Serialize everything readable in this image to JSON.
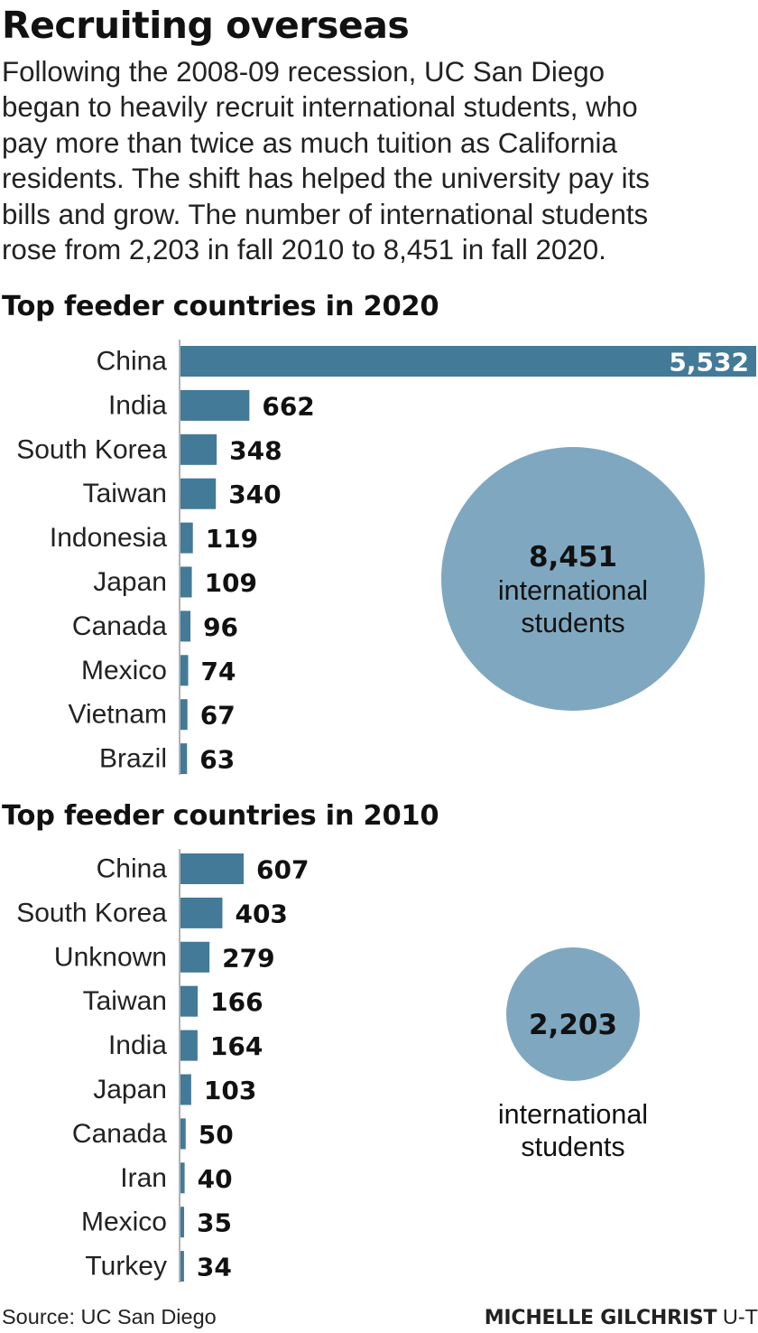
{
  "header": {
    "title": "Recruiting overseas",
    "intro": "Following the 2008-09 recession, UC San Diego\nbegan to heavily recruit international students, who\npay more than twice as much tuition as California\nresidents. The shift has helped the university pay its\nbills and grow. The number of international students\nrose from 2,203 in fall 2010 to 8,451 in fall 2020."
  },
  "colors": {
    "bar": "#437a98",
    "circle": "#7fa8c0",
    "axis": "#9a9a9a"
  },
  "chart_data": [
    {
      "type": "bar",
      "orientation": "horizontal",
      "title": "Top feeder countries in 2020",
      "categories": [
        "China",
        "India",
        "South Korea",
        "Taiwan",
        "Indonesia",
        "Japan",
        "Canada",
        "Mexico",
        "Vietnam",
        "Brazil"
      ],
      "values": [
        5532,
        662,
        348,
        340,
        119,
        109,
        96,
        74,
        67,
        63
      ],
      "value_labels": [
        "5,532",
        "662",
        "348",
        "340",
        "119",
        "109",
        "96",
        "74",
        "67",
        "63"
      ],
      "total": {
        "value": 8451,
        "label": "8,451",
        "caption_line1": "international",
        "caption_line2": "students"
      }
    },
    {
      "type": "bar",
      "orientation": "horizontal",
      "title": "Top feeder countries in 2010",
      "categories": [
        "China",
        "South Korea",
        "Unknown",
        "Taiwan",
        "India",
        "Japan",
        "Canada",
        "Iran",
        "Mexico",
        "Turkey"
      ],
      "values": [
        607,
        403,
        279,
        166,
        164,
        103,
        50,
        40,
        35,
        34
      ],
      "value_labels": [
        "607",
        "403",
        "279",
        "166",
        "164",
        "103",
        "50",
        "40",
        "35",
        "34"
      ],
      "total": {
        "value": 2203,
        "label": "2,203",
        "caption_line1": "international",
        "caption_line2": "students"
      }
    }
  ],
  "footer": {
    "source": "Source: UC San Diego",
    "credit_name": "MICHELLE GILCHRIST",
    "credit_org": "U-T"
  }
}
